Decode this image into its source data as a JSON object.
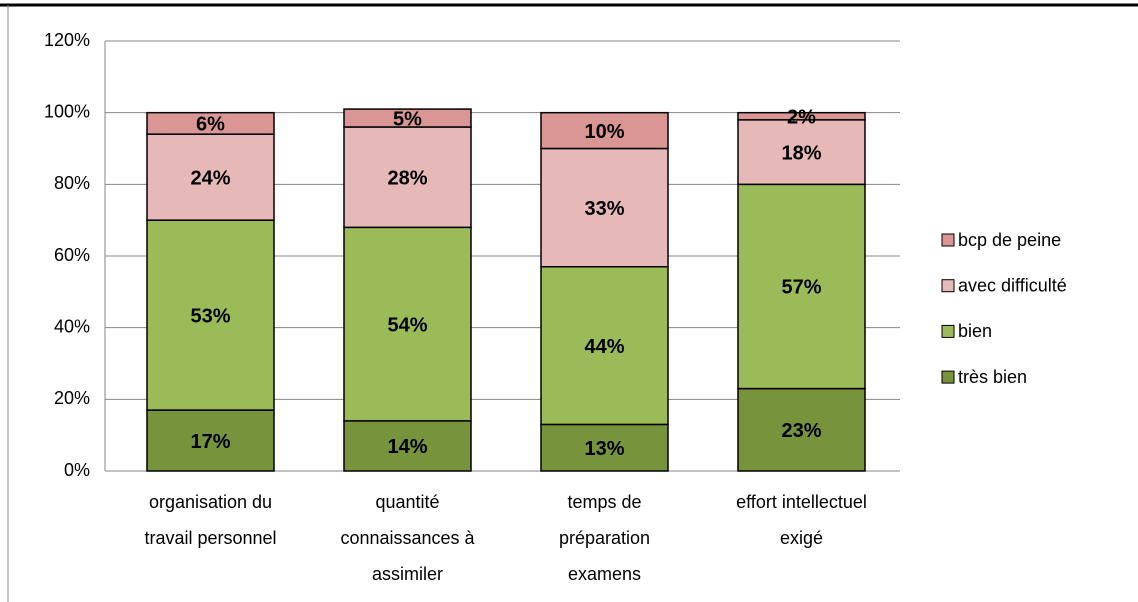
{
  "chart_data": {
    "type": "stacked_bar",
    "categories": [
      "organisation du\ntravail personnel",
      "quantité\nconnaissances à\nassimiler",
      "temps de\npréparation\nexamens",
      "effort intellectuel\nexigé"
    ],
    "series": [
      {
        "name": "très bien",
        "color": "#77933c",
        "values": [
          17,
          14,
          13,
          23
        ],
        "value_labels": [
          "17%",
          "14%",
          "13%",
          "23%"
        ]
      },
      {
        "name": "bien",
        "color": "#9bbb59",
        "values": [
          53,
          54,
          44,
          57
        ],
        "value_labels": [
          "53%",
          "54%",
          "44%",
          "57%"
        ]
      },
      {
        "name": "avec difficulté",
        "color": "#e6b9b8",
        "values": [
          24,
          28,
          33,
          18
        ],
        "value_labels": [
          "24%",
          "28%",
          "33%",
          "18%"
        ]
      },
      {
        "name": "bcp de peine",
        "color": "#d99694",
        "values": [
          6,
          5,
          10,
          2
        ],
        "value_labels": [
          "6%",
          "5%",
          "10%",
          "2%"
        ]
      }
    ],
    "ylim": [
      0,
      120
    ],
    "yticks": [
      {
        "value": 0,
        "label": "0%"
      },
      {
        "value": 20,
        "label": "20%"
      },
      {
        "value": 40,
        "label": "40%"
      },
      {
        "value": 60,
        "label": "60%"
      },
      {
        "value": 80,
        "label": "80%"
      },
      {
        "value": 100,
        "label": "100%"
      },
      {
        "value": 120,
        "label": "120%"
      }
    ],
    "grid": true,
    "legend": "right"
  }
}
